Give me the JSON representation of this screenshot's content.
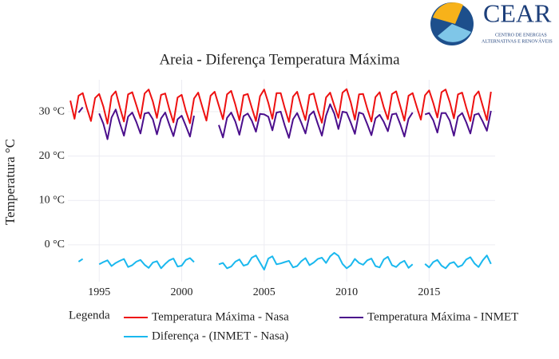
{
  "logo": {
    "name": "CEAR",
    "subtitle_line1": "CENTRO DE ENERGIAS",
    "subtitle_line2": "ALTERNATIVAS E RENOVÁVEIS"
  },
  "chart_data": {
    "type": "line",
    "title": "Areia - Diferença Temperatura Máxima",
    "y_label": "Temperatura °C",
    "legend_title": "Legenda",
    "grid": true,
    "legend_position": "bottom",
    "xlim": [
      1993.1,
      2019.0
    ],
    "ylim": [
      -8.3,
      37.2
    ],
    "xticks": [
      1995,
      2000,
      2005,
      2010,
      2015
    ],
    "yticks": [
      {
        "value": 0,
        "label": "0 °C"
      },
      {
        "value": 10,
        "label": "10 °C"
      },
      {
        "value": 20,
        "label": "20 °C"
      },
      {
        "value": 30,
        "label": "30 °C"
      }
    ],
    "x": [
      1993.25,
      1993.5,
      1993.75,
      1994,
      1994.25,
      1994.5,
      1994.75,
      1995,
      1995.25,
      1995.5,
      1995.75,
      1996,
      1996.25,
      1996.5,
      1996.75,
      1997,
      1997.25,
      1997.5,
      1997.75,
      1998,
      1998.25,
      1998.5,
      1998.75,
      1999,
      1999.25,
      1999.5,
      1999.75,
      2000,
      2000.25,
      2000.5,
      2000.75,
      2001,
      2001.25,
      2001.5,
      2001.75,
      2002,
      2002.25,
      2002.5,
      2002.75,
      2003,
      2003.25,
      2003.5,
      2003.75,
      2004,
      2004.25,
      2004.5,
      2004.75,
      2005,
      2005.25,
      2005.5,
      2005.75,
      2006,
      2006.25,
      2006.5,
      2006.75,
      2007,
      2007.25,
      2007.5,
      2007.75,
      2008,
      2008.25,
      2008.5,
      2008.75,
      2009,
      2009.25,
      2009.5,
      2009.75,
      2010,
      2010.25,
      2010.5,
      2010.75,
      2011,
      2011.25,
      2011.5,
      2011.75,
      2012,
      2012.25,
      2012.5,
      2012.75,
      2013,
      2013.25,
      2013.5,
      2013.75,
      2014,
      2014.25,
      2014.5,
      2014.75,
      2015,
      2015.25,
      2015.5,
      2015.75,
      2016,
      2016.25,
      2016.5,
      2016.75,
      2017,
      2017.25,
      2017.5,
      2017.75,
      2018,
      2018.25,
      2018.5,
      2018.75
    ],
    "series": [
      {
        "name": "Temperatura Máxima - Nasa",
        "color": "#ee1111",
        "values": [
          32.5,
          28.4,
          33.6,
          34.2,
          30.8,
          27.9,
          33.1,
          34.0,
          31.2,
          27.3,
          33.5,
          34.6,
          31.0,
          27.8,
          33.9,
          34.4,
          31.5,
          28.5,
          34.1,
          35.0,
          32.3,
          28.6,
          33.8,
          34.1,
          30.6,
          27.6,
          33.2,
          33.8,
          30.2,
          27.4,
          33.0,
          34.3,
          31.1,
          28.0,
          33.6,
          34.5,
          31.4,
          28.3,
          33.9,
          34.7,
          31.6,
          28.1,
          33.7,
          34.0,
          30.9,
          27.9,
          33.5,
          35.0,
          32.0,
          28.4,
          34.2,
          34.2,
          30.8,
          27.7,
          33.4,
          34.5,
          31.2,
          28.1,
          33.8,
          34.1,
          30.5,
          27.5,
          33.2,
          34.3,
          31.4,
          28.6,
          34.3,
          35.1,
          32.1,
          28.2,
          33.9,
          34.0,
          30.7,
          27.8,
          33.3,
          34.4,
          31.0,
          28.3,
          34.0,
          34.6,
          31.3,
          28.0,
          33.6,
          34.2,
          31.1,
          28.2,
          33.7,
          34.8,
          32.0,
          28.7,
          34.4,
          35.0,
          32.2,
          28.5,
          33.9,
          34.3,
          30.9,
          27.9,
          33.5,
          34.6,
          31.3,
          28.1,
          34.5
        ]
      },
      {
        "name": "Temperatura Máxima - INMET",
        "color": "#4b0f8c",
        "values": [
          null,
          null,
          29.8,
          31.0,
          null,
          null,
          null,
          29.6,
          27.3,
          23.8,
          28.7,
          30.5,
          27.4,
          24.6,
          28.9,
          29.8,
          27.7,
          25.1,
          29.6,
          29.8,
          28.3,
          24.9,
          28.5,
          29.8,
          27.1,
          24.5,
          28.3,
          29.1,
          26.8,
          24.4,
          29.1,
          null,
          27.4,
          null,
          null,
          null,
          27.0,
          24.2,
          28.6,
          29.8,
          27.8,
          24.8,
          29.0,
          29.6,
          28.0,
          25.5,
          29.5,
          29.4,
          28.9,
          25.8,
          29.8,
          30.0,
          26.9,
          24.1,
          28.3,
          29.7,
          27.5,
          25.1,
          29.2,
          30.1,
          27.3,
          24.6,
          29.1,
          31.7,
          29.6,
          26.1,
          30.0,
          29.8,
          27.5,
          25.0,
          29.8,
          29.5,
          27.2,
          24.7,
          28.5,
          29.3,
          27.7,
          25.6,
          29.4,
          29.6,
          27.2,
          24.4,
          28.4,
          29.8,
          null,
          null,
          29.4,
          29.7,
          28.1,
          25.3,
          29.7,
          29.7,
          28.0,
          24.6,
          28.9,
          29.7,
          27.6,
          25.1,
          29.3,
          29.6,
          27.8,
          25.7,
          30.2
        ]
      },
      {
        "name": "Diferença - (INMET - Nasa)",
        "color": "#1ab8ee",
        "values": [
          null,
          null,
          -3.8,
          -3.2,
          null,
          null,
          null,
          -4.4,
          -3.9,
          -3.5,
          -4.8,
          -4.1,
          -3.6,
          -3.2,
          -5.0,
          -4.6,
          -3.8,
          -3.4,
          -4.5,
          -5.2,
          -4.0,
          -3.7,
          -5.3,
          -4.3,
          -3.5,
          -3.1,
          -4.9,
          -4.7,
          -3.4,
          -3.0,
          -3.9,
          null,
          -3.7,
          null,
          null,
          null,
          -4.4,
          -4.1,
          -5.3,
          -4.9,
          -3.8,
          -3.3,
          -4.7,
          -4.4,
          -2.9,
          -2.4,
          -4.0,
          -5.6,
          -3.1,
          -2.6,
          -4.4,
          -4.2,
          -3.9,
          -3.6,
          -5.1,
          -4.8,
          -3.7,
          -3.0,
          -4.6,
          -4.0,
          -3.2,
          -2.9,
          -4.1,
          -2.6,
          -1.8,
          -2.5,
          -4.3,
          -5.3,
          -4.6,
          -3.2,
          -4.1,
          -4.5,
          -3.5,
          -3.1,
          -4.8,
          -5.1,
          -3.3,
          -2.7,
          -4.6,
          -5.0,
          -4.1,
          -3.6,
          -5.2,
          -4.4,
          null,
          null,
          -4.3,
          -5.1,
          -3.9,
          -3.4,
          -4.7,
          -5.3,
          -4.2,
          -3.9,
          -5.0,
          -4.6,
          -3.3,
          -2.8,
          -4.2,
          -5.0,
          -3.5,
          -2.4,
          -4.3
        ]
      }
    ]
  }
}
